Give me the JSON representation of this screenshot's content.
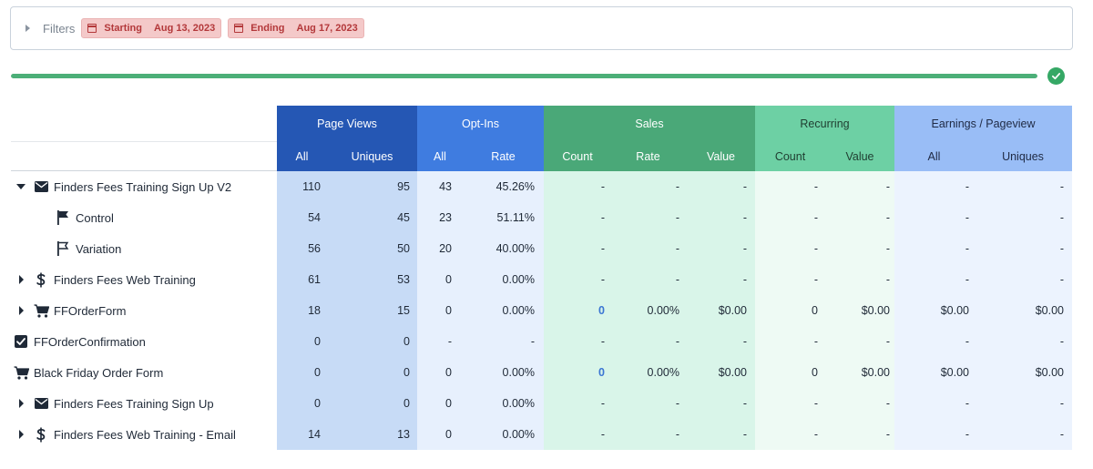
{
  "filters": {
    "label": "Filters",
    "starting_label": "Starting",
    "starting_date": "Aug 13, 2023",
    "ending_label": "Ending",
    "ending_date": "Aug 17, 2023"
  },
  "progress": {
    "percent": 100
  },
  "headers": {
    "groups": {
      "page_views": "Page Views",
      "opt_ins": "Opt-Ins",
      "sales": "Sales",
      "recurring": "Recurring",
      "earnings": "Earnings / Pageview"
    },
    "sub": [
      "All",
      "Uniques",
      "All",
      "Rate",
      "Count",
      "Rate",
      "Value",
      "Count",
      "Value",
      "All",
      "Uniques"
    ]
  },
  "rows": [
    {
      "name": "Finders Fees Training Sign Up V2",
      "icon": "envelope-icon",
      "toggle": "expanded",
      "indent": 0,
      "values": [
        "110",
        "95",
        "43",
        "45.26%",
        "-",
        "-",
        "-",
        "-",
        "-",
        "-",
        "-"
      ]
    },
    {
      "name": "Control",
      "icon": "flag-solid-icon",
      "toggle": "none",
      "indent": 1,
      "values": [
        "54",
        "45",
        "23",
        "51.11%",
        "-",
        "-",
        "-",
        "-",
        "-",
        "-",
        "-"
      ]
    },
    {
      "name": "Variation",
      "icon": "flag-outline-icon",
      "toggle": "none",
      "indent": 1,
      "values": [
        "56",
        "50",
        "20",
        "40.00%",
        "-",
        "-",
        "-",
        "-",
        "-",
        "-",
        "-"
      ]
    },
    {
      "name": "Finders Fees Web Training",
      "icon": "dollar-icon",
      "toggle": "collapsed",
      "indent": 0,
      "values": [
        "61",
        "53",
        "0",
        "0.00%",
        "-",
        "-",
        "-",
        "-",
        "-",
        "-",
        "-"
      ]
    },
    {
      "name": "FFOrderForm",
      "icon": "cart-icon",
      "toggle": "collapsed",
      "indent": 0,
      "values": [
        "18",
        "15",
        "0",
        "0.00%",
        "0",
        "0.00%",
        "$0.00",
        "0",
        "$0.00",
        "$0.00",
        "$0.00"
      ]
    },
    {
      "name": "FFOrderConfirmation",
      "icon": "checkbox-icon",
      "toggle": "hidden",
      "indent": 0,
      "values": [
        "0",
        "0",
        "-",
        "-",
        "-",
        "-",
        "-",
        "-",
        "-",
        "-",
        "-"
      ]
    },
    {
      "name": "Black Friday Order Form",
      "icon": "cart-icon",
      "toggle": "hidden",
      "indent": 0,
      "values": [
        "0",
        "0",
        "0",
        "0.00%",
        "0",
        "0.00%",
        "$0.00",
        "0",
        "$0.00",
        "$0.00",
        "$0.00"
      ]
    },
    {
      "name": "Finders Fees Training Sign Up",
      "icon": "envelope-icon",
      "toggle": "collapsed",
      "indent": 0,
      "values": [
        "0",
        "0",
        "0",
        "0.00%",
        "-",
        "-",
        "-",
        "-",
        "-",
        "-",
        "-"
      ]
    },
    {
      "name": "Finders Fees Web Training - Email",
      "icon": "dollar-icon",
      "toggle": "collapsed",
      "indent": 0,
      "values": [
        "14",
        "13",
        "0",
        "0.00%",
        "-",
        "-",
        "-",
        "-",
        "-",
        "-",
        "-"
      ]
    }
  ],
  "colors": {
    "page_views": "#2557b4",
    "opt_ins": "#3f7ce0",
    "sales": "#4aa878",
    "recurring": "#6dd0a4",
    "earnings": "#99bdf6",
    "success": "#35a865",
    "filter_chip": "#f4c9c9"
  }
}
